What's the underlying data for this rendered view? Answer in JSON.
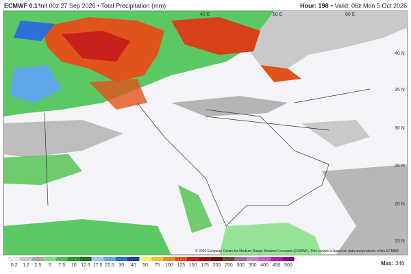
{
  "header": {
    "model": "ECMWF 0.1°",
    "init": "Init 00z 27 Sep 2026 • Total Precipitation (mm)",
    "hour": "Hour: 198",
    "valid": "• Valid: 06z Mon 5 Oct 2026"
  },
  "map": {
    "lat_labels": [
      "40 N",
      "35 N",
      "30 N",
      "25 N",
      "20 N",
      "15 N"
    ],
    "lon_labels": [
      "40 E",
      "50 E",
      "60 E"
    ],
    "credit": "© 2026 European Centre for Medium-Range Weather Forecasts (ECMWF). This service is based on data and products of the ECMWF."
  },
  "colorbar": {
    "levels": [
      0.2,
      1.2,
      2.5,
      5,
      7.5,
      10,
      12.5,
      17.5,
      22.5,
      30,
      40,
      50,
      75,
      100,
      125,
      150,
      175,
      200,
      250,
      300,
      350,
      400,
      450,
      500
    ],
    "colors": [
      "#e8e8e8",
      "#c8c8c8",
      "#a8a8a8",
      "#7fe07f",
      "#4cc24c",
      "#1f9e1f",
      "#127a12",
      "#9ecbf2",
      "#5ea8ea",
      "#2d6fd6",
      "#1f3fa8",
      "#f5f06a",
      "#f2c230",
      "#ef8a1d",
      "#e0531b",
      "#c8201c",
      "#9c1010",
      "#6e0b0b",
      "#7a4a2a",
      "#a06a9a",
      "#c77fc7",
      "#d94fd9",
      "#b81bb8",
      "#8a008a"
    ]
  },
  "max": {
    "label": "Max:",
    "value": 346
  }
}
